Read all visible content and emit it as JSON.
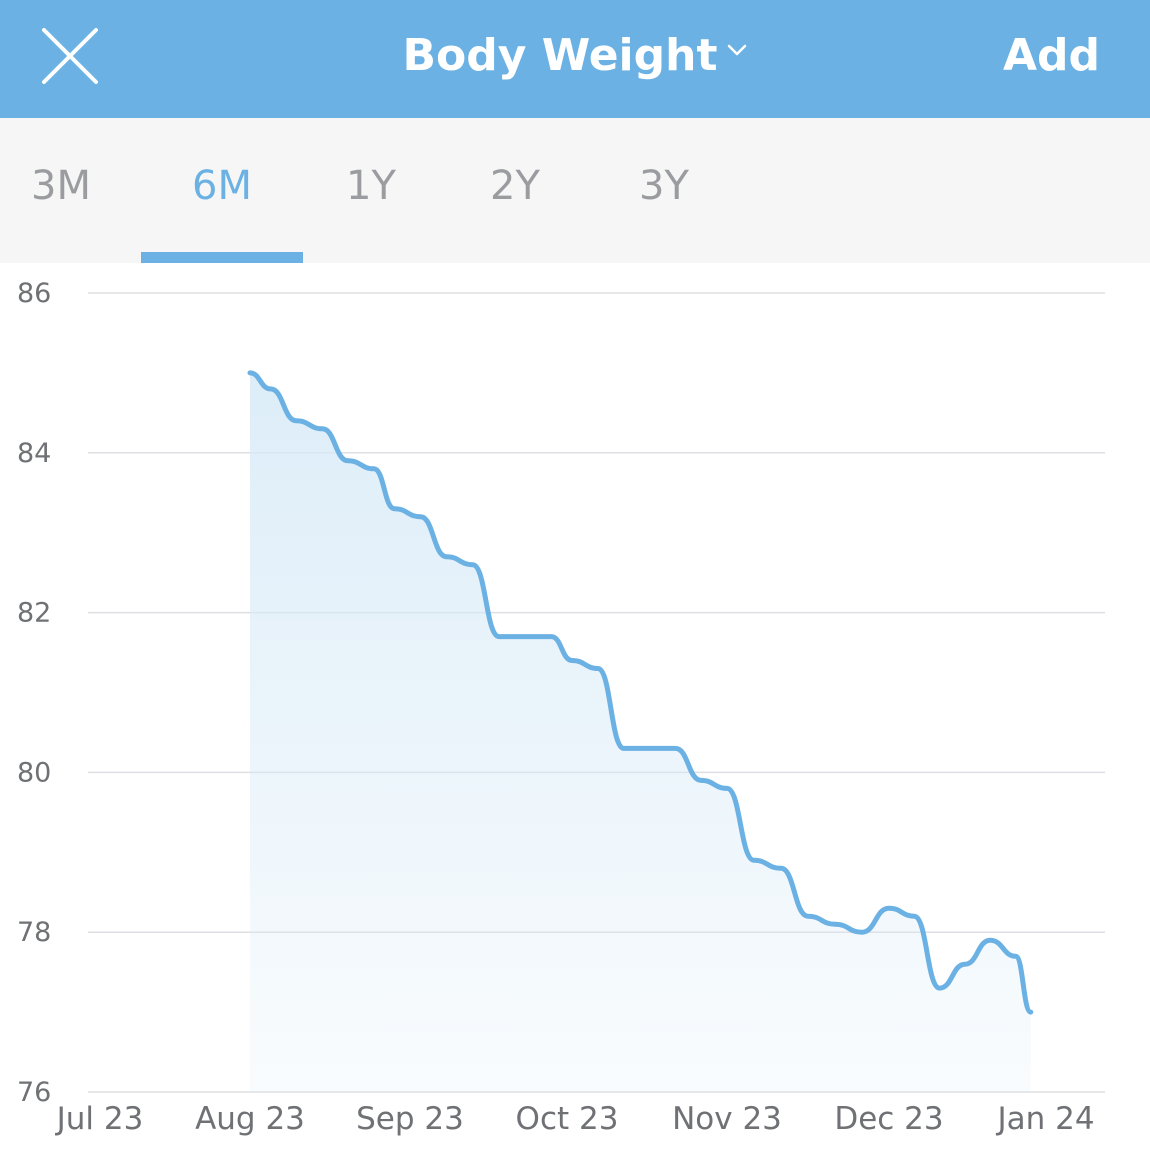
{
  "header": {
    "title": "Body Weight",
    "add_label": "Add",
    "background_color": "#6bb1e3",
    "close_icon": "close-icon",
    "dropdown_icon": "chevron-down-icon"
  },
  "tabs": [
    {
      "label": "3M",
      "active": false
    },
    {
      "label": "6M",
      "active": true
    },
    {
      "label": "1Y",
      "active": false
    },
    {
      "label": "2Y",
      "active": false
    },
    {
      "label": "3Y",
      "active": false
    }
  ],
  "chart_data": {
    "type": "area",
    "title": "",
    "xlabel": "",
    "ylabel": "",
    "ylim": [
      76,
      86
    ],
    "yticks": [
      86,
      84,
      82,
      80,
      78,
      76
    ],
    "x_tick_labels": [
      "Jul 23",
      "Aug 23",
      "Sep 23",
      "Oct 23",
      "Nov 23",
      "Dec 23",
      "Jan 24"
    ],
    "grid": true,
    "line_color": "#6bb1e3",
    "series": [
      {
        "x": [
          "2023-08-01",
          "2023-08-05",
          "2023-08-10",
          "2023-08-15",
          "2023-08-20",
          "2023-08-25",
          "2023-08-29",
          "2023-09-03",
          "2023-09-08",
          "2023-09-13",
          "2023-09-18",
          "2023-09-23",
          "2023-09-28",
          "2023-10-02",
          "2023-10-07",
          "2023-10-12",
          "2023-10-17",
          "2023-10-22",
          "2023-10-27",
          "2023-11-01",
          "2023-11-06",
          "2023-11-11",
          "2023-11-16",
          "2023-11-21",
          "2023-11-26",
          "2023-12-01",
          "2023-12-06",
          "2023-12-11",
          "2023-12-16",
          "2023-12-21",
          "2023-12-26",
          "2023-12-29"
        ],
        "values": [
          85.0,
          84.8,
          84.4,
          84.3,
          83.9,
          83.8,
          83.3,
          83.2,
          82.7,
          82.6,
          81.7,
          81.7,
          81.7,
          81.4,
          81.3,
          80.3,
          80.3,
          80.3,
          79.9,
          79.8,
          78.9,
          78.8,
          78.2,
          78.1,
          78.0,
          78.3,
          78.2,
          77.3,
          77.6,
          77.9,
          77.7,
          77.0
        ]
      }
    ]
  }
}
